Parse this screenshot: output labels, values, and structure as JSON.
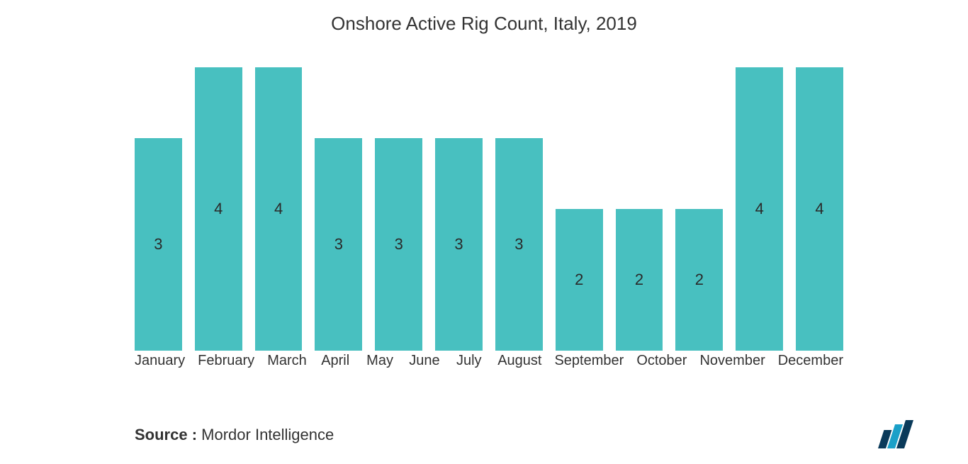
{
  "chart": {
    "type": "bar",
    "title": "Onshore Active Rig Count, Italy, 2019",
    "title_fontsize": 26,
    "title_color": "#333333",
    "background_color": "#ffffff",
    "bar_color": "#48c0c0",
    "value_label_color": "#2a2a2a",
    "value_label_fontsize": 22,
    "xlabel_fontsize": 20,
    "xlabel_color": "#333333",
    "ylim": [
      0,
      4.2
    ],
    "bar_gap_ratio": 0.22,
    "categories": [
      "January",
      "February",
      "March",
      "April",
      "May",
      "June",
      "July",
      "August",
      "September",
      "October",
      "November",
      "December"
    ],
    "values": [
      3,
      4,
      4,
      3,
      3,
      3,
      3,
      2,
      2,
      2,
      4,
      4
    ]
  },
  "source": {
    "label": "Source :",
    "text": "Mordor Intelligence",
    "fontsize": 22
  },
  "logo": {
    "name": "mordor-intelligence-logo",
    "colors": {
      "bar1": "#0a3a5a",
      "bar2": "#1aa0c8",
      "bar3": "#0a3a5a"
    }
  }
}
